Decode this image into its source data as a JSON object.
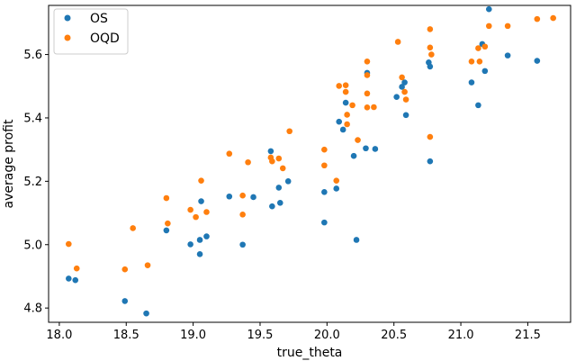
{
  "chart_data": {
    "type": "scatter",
    "xlabel": "true_theta",
    "ylabel": "average profit",
    "xlim": [
      17.92,
      21.82
    ],
    "ylim": [
      4.755,
      5.755
    ],
    "xticks": [
      18.0,
      18.5,
      19.0,
      19.5,
      20.0,
      20.5,
      21.0,
      21.5
    ],
    "xtick_labels": [
      "18.0",
      "18.5",
      "19.0",
      "19.5",
      "20.0",
      "20.5",
      "21.0",
      "21.5"
    ],
    "yticks": [
      4.8,
      5.0,
      5.2,
      5.4,
      5.6
    ],
    "ytick_labels": [
      "4.8",
      "5.0",
      "5.2",
      "5.4",
      "5.6"
    ],
    "grid": false,
    "legend_position": "top-left",
    "series": [
      {
        "name": "OS",
        "color": "#1f77b4",
        "points": [
          [
            18.07,
            4.893
          ],
          [
            18.12,
            4.888
          ],
          [
            18.49,
            4.822
          ],
          [
            18.65,
            4.783
          ],
          [
            18.8,
            5.045
          ],
          [
            18.98,
            5.001
          ],
          [
            19.05,
            5.015
          ],
          [
            19.05,
            4.97
          ],
          [
            19.06,
            5.137
          ],
          [
            19.1,
            5.026
          ],
          [
            19.27,
            5.152
          ],
          [
            19.37,
            5.0
          ],
          [
            19.45,
            5.15
          ],
          [
            19.58,
            5.295
          ],
          [
            19.59,
            5.121
          ],
          [
            19.64,
            5.18
          ],
          [
            19.65,
            5.132
          ],
          [
            19.71,
            5.2
          ],
          [
            19.98,
            5.166
          ],
          [
            19.98,
            5.07
          ],
          [
            20.07,
            5.177
          ],
          [
            20.09,
            5.388
          ],
          [
            20.12,
            5.363
          ],
          [
            20.14,
            5.448
          ],
          [
            20.2,
            5.28
          ],
          [
            20.22,
            5.015
          ],
          [
            20.29,
            5.304
          ],
          [
            20.3,
            5.542
          ],
          [
            20.36,
            5.302
          ],
          [
            20.52,
            5.466
          ],
          [
            20.56,
            5.498
          ],
          [
            20.58,
            5.512
          ],
          [
            20.59,
            5.409
          ],
          [
            20.76,
            5.575
          ],
          [
            20.77,
            5.562
          ],
          [
            20.77,
            5.263
          ],
          [
            21.08,
            5.512
          ],
          [
            21.13,
            5.44
          ],
          [
            21.16,
            5.633
          ],
          [
            21.18,
            5.548
          ],
          [
            21.21,
            5.743
          ],
          [
            21.35,
            5.597
          ],
          [
            21.57,
            5.58
          ]
        ]
      },
      {
        "name": "OQD",
        "color": "#ff7f0e",
        "points": [
          [
            18.07,
            5.002
          ],
          [
            18.13,
            4.925
          ],
          [
            18.49,
            4.922
          ],
          [
            18.55,
            5.052
          ],
          [
            18.66,
            4.935
          ],
          [
            18.8,
            5.147
          ],
          [
            18.81,
            5.067
          ],
          [
            18.98,
            5.11
          ],
          [
            19.02,
            5.087
          ],
          [
            19.06,
            5.202
          ],
          [
            19.1,
            5.103
          ],
          [
            19.27,
            5.287
          ],
          [
            19.37,
            5.155
          ],
          [
            19.37,
            5.095
          ],
          [
            19.41,
            5.26
          ],
          [
            19.58,
            5.275
          ],
          [
            19.59,
            5.263
          ],
          [
            19.64,
            5.272
          ],
          [
            19.67,
            5.241
          ],
          [
            19.72,
            5.358
          ],
          [
            19.98,
            5.3
          ],
          [
            19.98,
            5.25
          ],
          [
            20.07,
            5.202
          ],
          [
            20.09,
            5.501
          ],
          [
            20.14,
            5.503
          ],
          [
            20.14,
            5.482
          ],
          [
            20.15,
            5.41
          ],
          [
            20.15,
            5.38
          ],
          [
            20.19,
            5.44
          ],
          [
            20.23,
            5.33
          ],
          [
            20.3,
            5.578
          ],
          [
            20.3,
            5.535
          ],
          [
            20.3,
            5.477
          ],
          [
            20.3,
            5.433
          ],
          [
            20.35,
            5.434
          ],
          [
            20.53,
            5.64
          ],
          [
            20.56,
            5.528
          ],
          [
            20.58,
            5.482
          ],
          [
            20.59,
            5.458
          ],
          [
            20.77,
            5.68
          ],
          [
            20.77,
            5.622
          ],
          [
            20.78,
            5.6
          ],
          [
            20.77,
            5.34
          ],
          [
            21.08,
            5.578
          ],
          [
            21.13,
            5.62
          ],
          [
            21.14,
            5.578
          ],
          [
            21.18,
            5.625
          ],
          [
            21.21,
            5.69
          ],
          [
            21.35,
            5.69
          ],
          [
            21.57,
            5.712
          ],
          [
            21.69,
            5.715
          ]
        ]
      }
    ]
  }
}
